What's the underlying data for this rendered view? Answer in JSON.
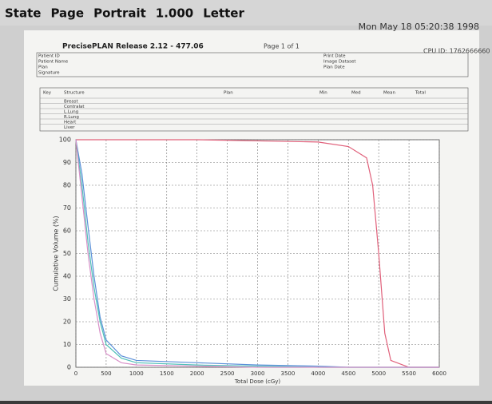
{
  "toolbar": {
    "items": [
      "State",
      "Page",
      "Portrait",
      "1.000",
      "Letter"
    ],
    "clock": "Mon May 18 05:20:38 1998"
  },
  "header": {
    "title": "PrecisePLAN Release 2.12 - 477.06",
    "page": "Page 1 of 1",
    "cpu": "CPU ID: 1762666660",
    "left_fields": [
      "Patient ID",
      "Patient Name",
      "Plan",
      "Signature"
    ],
    "right_fields": [
      "Print Date",
      "Image Dataset",
      "Plan Date"
    ]
  },
  "table": {
    "columns": [
      "Key",
      "Structure",
      "Plan",
      "Min",
      "Med",
      "Mean",
      "Total"
    ],
    "rows": [
      "Breast",
      "Contralat",
      "L.Lung",
      "R.Lung",
      "Heart",
      "Liver"
    ]
  },
  "chart_data": {
    "type": "line",
    "y_label": "Cumulative Volume (%)",
    "x_label": "Total Dose (cGy)",
    "x": [
      0,
      100,
      200,
      300,
      400,
      500,
      750,
      1000,
      2000,
      3000,
      4000,
      4500,
      4800,
      4900,
      5000,
      5100,
      5200,
      5500,
      6000
    ],
    "series": [
      {
        "name": "Breast",
        "color": "#e0607a",
        "values": [
          100,
          100,
          100,
          100,
          100,
          100,
          100,
          100,
          100,
          99.5,
          99,
          97,
          92,
          80,
          50,
          15,
          3,
          0,
          0
        ]
      },
      {
        "name": "L.Lung",
        "color": "#5a8fd8",
        "values": [
          100,
          85,
          62,
          40,
          22,
          12,
          5,
          3,
          2,
          1,
          0.5,
          0,
          0,
          0,
          0,
          0,
          0,
          0,
          0
        ]
      },
      {
        "name": "R.Lung",
        "color": "#4fc0b8",
        "values": [
          100,
          80,
          55,
          35,
          20,
          10,
          4,
          2,
          1,
          0.5,
          0,
          0,
          0,
          0,
          0,
          0,
          0,
          0,
          0
        ]
      },
      {
        "name": "Heart",
        "color": "#d890c8",
        "values": [
          100,
          75,
          50,
          30,
          15,
          6,
          2,
          1,
          0.5,
          0,
          0,
          0,
          0,
          0,
          0,
          0,
          0,
          0,
          0
        ]
      }
    ],
    "xlim": [
      0,
      6000
    ],
    "ylim": [
      0,
      100
    ],
    "xticks": [
      0,
      500,
      1000,
      1500,
      2000,
      2500,
      3000,
      3500,
      4000,
      4500,
      5000,
      5500,
      6000
    ],
    "yticks": [
      0,
      10,
      20,
      30,
      40,
      50,
      60,
      70,
      80,
      90,
      100
    ],
    "grid": true
  }
}
